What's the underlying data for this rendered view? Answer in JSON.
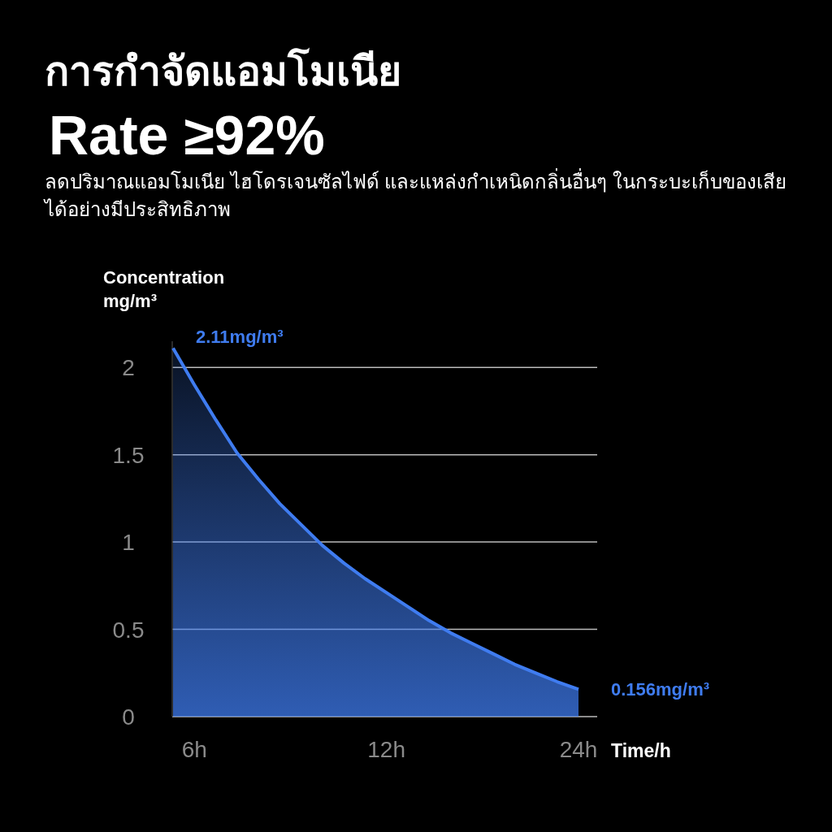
{
  "chart_data": {
    "type": "area",
    "title": "การกำจัดแอมโมเนีย",
    "subtitle": "Rate ≥92%",
    "annotations": [
      "ลดปริมาณแอมโมเนีย ไฮโดรเจนซัลไฟด์ และแหล่งกำเหนิดกลิ่นอื่นๆ ในกระบะเก็บของเสียได้อย่างมีประสิทธิภาพ"
    ],
    "ylabel": "Concentration\nmg/m³",
    "xlabel": "Time/h",
    "categories": [
      null,
      "6h",
      null,
      null,
      null,
      null,
      null,
      null,
      null,
      null,
      "12h",
      null,
      null,
      null,
      null,
      null,
      null,
      null,
      null,
      "24h"
    ],
    "values": [
      2.11,
      1.9,
      1.7,
      1.51,
      1.36,
      1.22,
      1.1,
      0.98,
      0.88,
      0.79,
      0.71,
      0.63,
      0.55,
      0.48,
      0.42,
      0.36,
      0.3,
      0.25,
      0.2,
      0.156
    ],
    "value_labels": [
      "2.11mg/m³",
      null,
      null,
      null,
      null,
      null,
      null,
      null,
      null,
      null,
      null,
      null,
      null,
      null,
      null,
      null,
      null,
      null,
      null,
      "0.156mg/m³"
    ],
    "color": "#3f7cf0",
    "ylim": [
      0,
      2.15
    ],
    "yticks": [
      0,
      0.5,
      1,
      1.5,
      2
    ],
    "grid": "y"
  }
}
